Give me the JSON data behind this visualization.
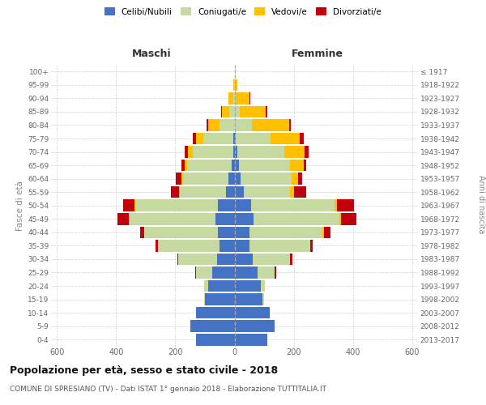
{
  "age_groups": [
    "0-4",
    "5-9",
    "10-14",
    "15-19",
    "20-24",
    "25-29",
    "30-34",
    "35-39",
    "40-44",
    "45-49",
    "50-54",
    "55-59",
    "60-64",
    "65-69",
    "70-74",
    "75-79",
    "80-84",
    "85-89",
    "90-94",
    "95-99",
    "100+"
  ],
  "birth_years": [
    "2013-2017",
    "2008-2012",
    "2003-2007",
    "1998-2002",
    "1993-1997",
    "1988-1992",
    "1983-1987",
    "1978-1982",
    "1973-1977",
    "1968-1972",
    "1963-1967",
    "1958-1962",
    "1953-1957",
    "1948-1952",
    "1943-1947",
    "1938-1942",
    "1933-1937",
    "1928-1932",
    "1923-1927",
    "1918-1922",
    "≤ 1917"
  ],
  "males": {
    "celibi": [
      130,
      150,
      130,
      100,
      90,
      75,
      60,
      50,
      55,
      65,
      55,
      30,
      20,
      10,
      5,
      5,
      0,
      0,
      0,
      0,
      0
    ],
    "coniugati": [
      0,
      0,
      0,
      4,
      12,
      55,
      130,
      210,
      250,
      290,
      280,
      155,
      155,
      150,
      135,
      100,
      50,
      18,
      5,
      2,
      0
    ],
    "vedovi": [
      0,
      0,
      0,
      0,
      0,
      0,
      0,
      0,
      0,
      3,
      3,
      3,
      5,
      8,
      18,
      25,
      40,
      25,
      15,
      3,
      0
    ],
    "divorziati": [
      0,
      0,
      0,
      0,
      0,
      2,
      4,
      8,
      14,
      38,
      38,
      28,
      18,
      10,
      10,
      10,
      5,
      2,
      0,
      0,
      0
    ]
  },
  "females": {
    "nubili": [
      110,
      135,
      120,
      95,
      90,
      78,
      62,
      50,
      50,
      65,
      55,
      32,
      20,
      15,
      10,
      5,
      0,
      0,
      0,
      0,
      0
    ],
    "coniugate": [
      0,
      0,
      0,
      4,
      13,
      58,
      125,
      205,
      248,
      290,
      282,
      155,
      172,
      172,
      158,
      118,
      58,
      18,
      4,
      2,
      0
    ],
    "vedove": [
      0,
      0,
      0,
      0,
      0,
      0,
      0,
      0,
      4,
      4,
      8,
      13,
      23,
      48,
      68,
      98,
      128,
      88,
      48,
      8,
      0
    ],
    "divorziate": [
      0,
      0,
      0,
      0,
      0,
      4,
      8,
      8,
      23,
      52,
      58,
      43,
      14,
      8,
      14,
      14,
      4,
      4,
      2,
      0,
      0
    ]
  },
  "colors": {
    "celibi_nubili": "#4472c4",
    "coniugati": "#c5d9a0",
    "vedovi": "#ffc000",
    "divorziati": "#c0000b"
  },
  "title": "Popolazione per età, sesso e stato civile - 2018",
  "subtitle": "COMUNE DI SPRESIANO (TV) - Dati ISTAT 1° gennaio 2018 - Elaborazione TUTTITALIA.IT",
  "xlabel_left": "Maschi",
  "xlabel_right": "Femmine",
  "ylabel_left": "Fasce di età",
  "ylabel_right": "Anni di nascita",
  "xlim": 620,
  "background_color": "#ffffff",
  "grid_color": "#cccccc"
}
